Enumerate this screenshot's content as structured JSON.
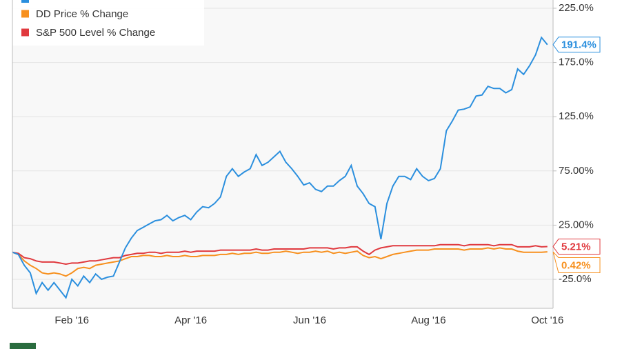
{
  "chart_data": {
    "type": "line",
    "categories": [
      null,
      null,
      null,
      null,
      null,
      null,
      null,
      null,
      null,
      null,
      "Feb '16",
      null,
      null,
      null,
      null,
      null,
      null,
      null,
      null,
      null,
      null,
      null,
      null,
      null,
      null,
      null,
      null,
      null,
      null,
      null,
      "Apr '16",
      null,
      null,
      null,
      null,
      null,
      null,
      null,
      null,
      null,
      null,
      null,
      null,
      null,
      null,
      null,
      null,
      null,
      null,
      null,
      "Jun '16",
      null,
      null,
      null,
      null,
      null,
      null,
      null,
      null,
      null,
      null,
      null,
      null,
      null,
      null,
      null,
      null,
      null,
      null,
      null,
      "Aug '16",
      null,
      null,
      null,
      null,
      null,
      null,
      null,
      null,
      null,
      null,
      null,
      null,
      null,
      null,
      null,
      null,
      null,
      null,
      null,
      "Oct '16"
    ],
    "series": [
      {
        "color": "#2b8fde",
        "last_label": "191.4%",
        "values": [
          0,
          -2,
          -12,
          -19,
          -38,
          -28,
          -35,
          -28,
          -35,
          -42,
          -25,
          -31,
          -22,
          -28,
          -20,
          -25,
          -23,
          -22,
          -9,
          4,
          13,
          20,
          23,
          26,
          29,
          30,
          34,
          29,
          32,
          34,
          30,
          37,
          42,
          41,
          45,
          51,
          70,
          77,
          70,
          74,
          77,
          90,
          80,
          83,
          88,
          93,
          83,
          77,
          70,
          62,
          64,
          58,
          56,
          61,
          61,
          66,
          70,
          80,
          61,
          54,
          45,
          42,
          12,
          45,
          61,
          70,
          70,
          67,
          77,
          70,
          66,
          68,
          77,
          112,
          121,
          131,
          132,
          134,
          144,
          145,
          153,
          151,
          151,
          147,
          150,
          169,
          164,
          172,
          182,
          198,
          191.4
        ]
      },
      {
        "name": "DD Price % Change",
        "color": "#f7901e",
        "last_label": "0.42%",
        "values": [
          0,
          -2,
          -8,
          -12,
          -15,
          -19,
          -20,
          -19,
          -20,
          -22,
          -19,
          -15,
          -14,
          -15,
          -12,
          -11,
          -10,
          -9,
          -8,
          -6,
          -4,
          -4,
          -3,
          -3,
          -4,
          -4,
          -3,
          -4,
          -4,
          -3,
          -4,
          -4,
          -3,
          -3,
          -3,
          -2,
          -2,
          -1,
          -2,
          -1,
          -1,
          0,
          -1,
          -1,
          0,
          0,
          1,
          0,
          -1,
          0,
          0,
          1,
          0,
          1,
          -1,
          0,
          -1,
          0,
          1,
          -3,
          -5,
          -4,
          -6,
          -4,
          -2,
          -1,
          0,
          1,
          2,
          2,
          2,
          3,
          3,
          3,
          3,
          3,
          2,
          3,
          3,
          3,
          4,
          3,
          4,
          3,
          3,
          1,
          0,
          0,
          0,
          0,
          0.42
        ]
      },
      {
        "name": "S&P 500 Level % Change",
        "color": "#e0393e",
        "last_label": "5.21%",
        "values": [
          0,
          -1,
          -5,
          -6,
          -8,
          -9,
          -9,
          -9,
          -10,
          -11,
          -10,
          -10,
          -9,
          -8,
          -8,
          -7,
          -6,
          -5,
          -5,
          -3,
          -2,
          -1,
          -1,
          0,
          0,
          -1,
          0,
          0,
          0,
          1,
          0,
          1,
          1,
          1,
          1,
          2,
          2,
          2,
          2,
          2,
          2,
          3,
          2,
          2,
          3,
          3,
          3,
          3,
          3,
          3,
          4,
          4,
          4,
          4,
          3,
          4,
          4,
          5,
          5,
          1,
          -2,
          2,
          4,
          5,
          6,
          6,
          6,
          6,
          6,
          6,
          6,
          6,
          7,
          7,
          7,
          7,
          6,
          7,
          7,
          7,
          7,
          6,
          7,
          7,
          7,
          5,
          5,
          5,
          6,
          5,
          5.21
        ]
      }
    ],
    "ylim": [
      -51.7,
      232.6
    ],
    "yticks": [
      {
        "value": -25,
        "label": "-25.0%"
      },
      {
        "value": 25,
        "label": "25.00%"
      },
      {
        "value": 75,
        "label": "75.00%"
      },
      {
        "value": 125,
        "label": "125.0%"
      },
      {
        "value": 175,
        "label": "175.0%"
      },
      {
        "value": 225,
        "label": "225.0%"
      }
    ],
    "grid": true
  }
}
